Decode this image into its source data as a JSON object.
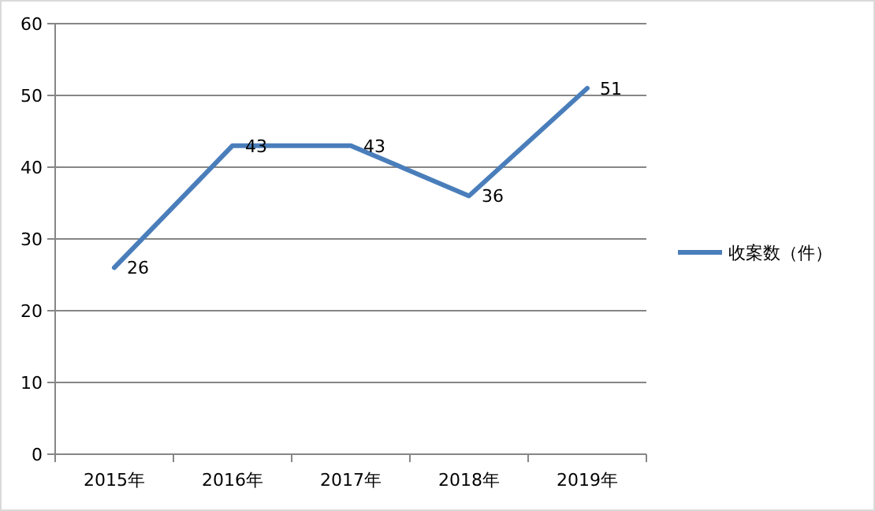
{
  "chart_data": {
    "type": "line",
    "categories": [
      "2015年",
      "2016年",
      "2017年",
      "2018年",
      "2019年"
    ],
    "series": [
      {
        "name": "收案数（件）",
        "color": "#4a7ebb",
        "values": [
          26,
          43,
          43,
          36,
          51
        ]
      }
    ],
    "ylim": [
      0,
      60
    ],
    "yticks": [
      0,
      10,
      20,
      30,
      40,
      50,
      60
    ],
    "grid": "y",
    "legend": "right",
    "data_labels": true,
    "marker": "none",
    "line_style": "solid"
  }
}
